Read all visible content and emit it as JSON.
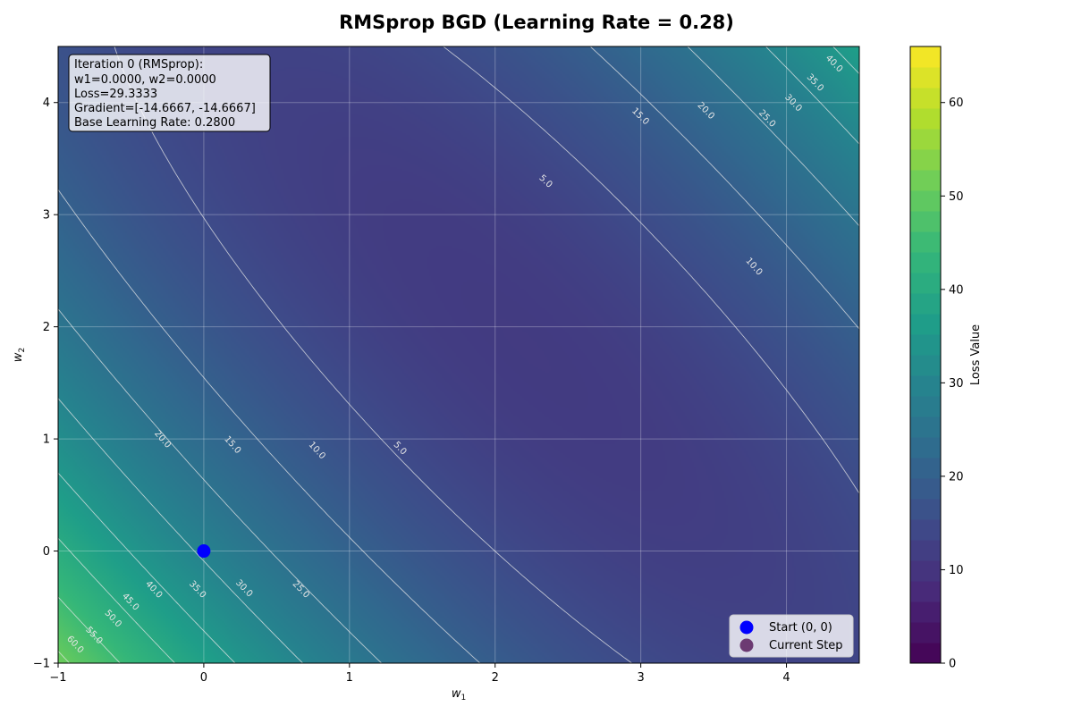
{
  "chart_data": {
    "type": "heatmap",
    "title": "RMSprop BGD (Learning Rate = 0.28)",
    "xlabel_base": "w",
    "xlabel_sub": "1",
    "ylabel_base": "w",
    "ylabel_sub": "2",
    "xlim": [
      -1,
      4.5
    ],
    "ylim": [
      -1,
      4.5
    ],
    "x_ticks": [
      -1,
      0,
      1,
      2,
      3,
      4
    ],
    "y_ticks": [
      -1,
      0,
      1,
      2,
      3,
      4
    ],
    "x_tick_labels": [
      "−1",
      "0",
      "1",
      "2",
      "3",
      "4"
    ],
    "y_tick_labels": [
      "−1",
      "0",
      "1",
      "2",
      "3",
      "4"
    ],
    "grid": true,
    "colormap": "viridis",
    "colorbar": {
      "label": "Loss Value",
      "range": [
        0,
        66
      ],
      "ticks": [
        0,
        10,
        20,
        30,
        40,
        50,
        60
      ],
      "tick_labels": [
        "0",
        "10",
        "20",
        "30",
        "40",
        "50",
        "60"
      ]
    },
    "contour_levels": [
      5,
      10,
      15,
      20,
      25,
      30,
      35,
      40,
      45,
      50,
      55,
      60
    ],
    "contour_labels": [
      {
        "text": "5.0",
        "x": 1.35,
        "y": 0.92
      },
      {
        "text": "5.0",
        "x": 2.35,
        "y": 3.3
      },
      {
        "text": "10.0",
        "x": 0.78,
        "y": 0.9
      },
      {
        "text": "10.0",
        "x": 3.78,
        "y": 2.54
      },
      {
        "text": "15.0",
        "x": 0.2,
        "y": 0.95
      },
      {
        "text": "15.0",
        "x": 3.0,
        "y": 3.88
      },
      {
        "text": "20.0",
        "x": -0.28,
        "y": 1.0
      },
      {
        "text": "20.0",
        "x": 3.45,
        "y": 3.93
      },
      {
        "text": "25.0",
        "x": 0.67,
        "y": -0.34
      },
      {
        "text": "25.0",
        "x": 3.87,
        "y": 3.86
      },
      {
        "text": "30.0",
        "x": 0.28,
        "y": -0.33
      },
      {
        "text": "30.0",
        "x": 4.05,
        "y": 4.0
      },
      {
        "text": "35.0",
        "x": -0.04,
        "y": -0.34
      },
      {
        "text": "35.0",
        "x": 4.2,
        "y": 4.18
      },
      {
        "text": "40.0",
        "x": -0.34,
        "y": -0.34
      },
      {
        "text": "40.0",
        "x": 4.33,
        "y": 4.35
      },
      {
        "text": "45.0",
        "x": -0.5,
        "y": -0.45
      },
      {
        "text": "50.0",
        "x": -0.62,
        "y": -0.6
      },
      {
        "text": "55.0",
        "x": -0.75,
        "y": -0.75
      },
      {
        "text": "60.0",
        "x": -0.88,
        "y": -0.83
      }
    ],
    "series": [
      {
        "name": "Start (0, 0)",
        "x": [
          0
        ],
        "y": [
          0
        ],
        "color": "#0000ff"
      },
      {
        "name": "Current Step",
        "x": [],
        "y": [],
        "color": "#6c3a72"
      }
    ],
    "legend_position": "lower-right",
    "annotation": {
      "lines": [
        "Iteration 0 (RMSprop):",
        "w1=0.0000, w2=0.0000",
        "Loss=29.3333",
        "Gradient=[-14.6667, -14.6667]",
        "Base Learning Rate: 0.2800"
      ]
    }
  }
}
